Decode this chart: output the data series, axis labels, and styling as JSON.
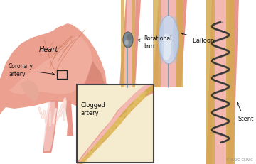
{
  "labels": {
    "coronary_artery": "Coronary\nartery",
    "heart": "Heart",
    "clogged_artery": "Clogged\nartery",
    "rotational_burr": "Rotational\nburr",
    "balloon": "Balloon",
    "stent": "Stent",
    "mayo_clinic": "© MAYO CLINIC"
  },
  "colors": {
    "background": "#ffffff",
    "heart_light": "#f5b8a8",
    "heart_mid": "#eca090",
    "heart_dark": "#d07868",
    "heart_shadow": "#c06858",
    "artery_outer": "#e8968a",
    "artery_inner": "#f2b0a8",
    "artery_highlight": "#fad0cc",
    "plaque_gold": "#d4aa50",
    "plaque_light": "#e8c870",
    "plaque_dark": "#b08830",
    "inset_bg": "#f5eccf",
    "inset_border": "#444444",
    "burr_light": "#b0b8c0",
    "burr_mid": "#808890",
    "burr_dark": "#505860",
    "balloon_blue": "#c8d8f0",
    "balloon_light": "#e8f0f8",
    "balloon_dark": "#a0b8d8",
    "stent_dark": "#383838",
    "stent_mid": "#585858",
    "label_color": "#111111",
    "arrow_color": "#111111",
    "vessel_line": "#c87050"
  },
  "figsize": [
    3.6,
    2.32
  ],
  "dpi": 100
}
